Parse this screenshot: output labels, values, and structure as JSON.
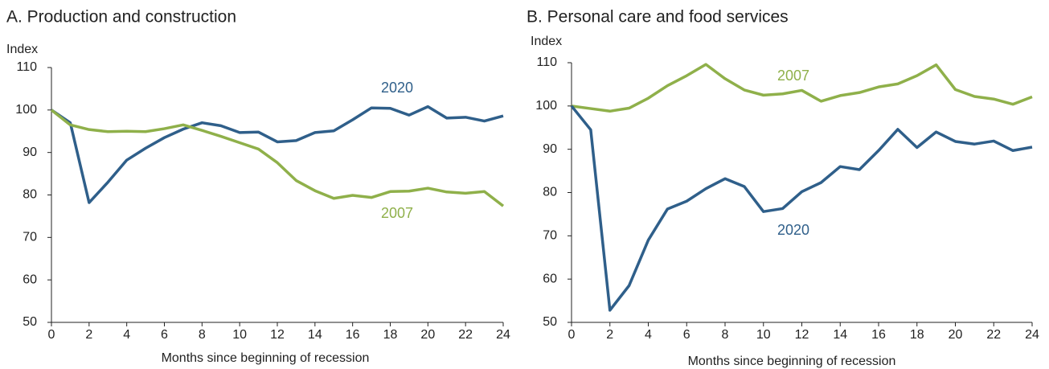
{
  "chart_data": [
    {
      "type": "line",
      "title": "A.  Production and construction",
      "y_label": "Index",
      "x_label": "Months since beginning of recession",
      "x": [
        0,
        1,
        2,
        3,
        4,
        5,
        6,
        7,
        8,
        9,
        10,
        11,
        12,
        13,
        14,
        15,
        16,
        17,
        18,
        19,
        20,
        21,
        22,
        23,
        24
      ],
      "xlim": [
        0,
        24
      ],
      "xticks": [
        0,
        2,
        4,
        6,
        8,
        10,
        12,
        14,
        16,
        18,
        20,
        22,
        24
      ],
      "ylim": [
        50,
        110
      ],
      "yticks": [
        50,
        60,
        70,
        80,
        90,
        100,
        110
      ],
      "series": [
        {
          "name": "2020",
          "color": "#2f5f8a",
          "values": [
            100,
            97,
            78.2,
            83,
            88.2,
            91,
            93.5,
            95.5,
            97,
            96.3,
            94.7,
            94.8,
            92.5,
            92.8,
            94.7,
            95.1,
            97.7,
            100.5,
            100.4,
            98.8,
            100.8,
            98.1,
            98.3,
            97.4,
            98.6
          ]
        },
        {
          "name": "2007",
          "color": "#8fb04a",
          "values": [
            100,
            96.5,
            95.4,
            94.9,
            95,
            94.9,
            95.6,
            96.5,
            95.2,
            93.8,
            92.3,
            90.8,
            87.6,
            83.4,
            81,
            79.2,
            79.9,
            79.4,
            80.8,
            80.9,
            81.6,
            80.7,
            80.4,
            80.8,
            77.4
          ]
        }
      ]
    },
    {
      "type": "line",
      "title": "B.  Personal care and food services",
      "y_label": "Index",
      "x_label": "Months since beginning of recession",
      "x": [
        0,
        1,
        2,
        3,
        4,
        5,
        6,
        7,
        8,
        9,
        10,
        11,
        12,
        13,
        14,
        15,
        16,
        17,
        18,
        19,
        20,
        21,
        22,
        23,
        24
      ],
      "xlim": [
        0,
        24
      ],
      "xticks": [
        0,
        2,
        4,
        6,
        8,
        10,
        12,
        14,
        16,
        18,
        20,
        22,
        24
      ],
      "ylim": [
        50,
        110
      ],
      "yticks": [
        50,
        60,
        70,
        80,
        90,
        100,
        110
      ],
      "series": [
        {
          "name": "2007",
          "color": "#8fb04a",
          "values": [
            100,
            99.4,
            98.8,
            99.5,
            101.8,
            104.7,
            107,
            109.6,
            106.3,
            103.7,
            102.5,
            102.8,
            103.6,
            101.1,
            102.4,
            103.1,
            104.4,
            105.1,
            107,
            109.5,
            103.8,
            102.2,
            101.6,
            100.4,
            102.1
          ]
        },
        {
          "name": "2020",
          "color": "#2f5f8a",
          "values": [
            100,
            94.5,
            52.8,
            58.5,
            69,
            76.2,
            78,
            80.9,
            83.2,
            81.4,
            75.6,
            76.3,
            80.2,
            82.3,
            86,
            85.3,
            89.7,
            94.6,
            90.4,
            94,
            91.8,
            91.2,
            91.9,
            89.7,
            90.5
          ]
        }
      ]
    }
  ]
}
